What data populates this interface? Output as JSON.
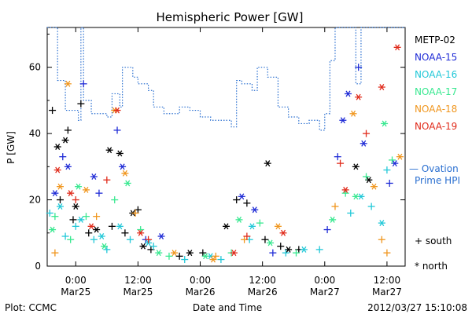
{
  "chart_data": {
    "type": "scatter",
    "title": "Hemispheric Power [GW]",
    "xlabel": "Date and Time",
    "ylabel": "P [GW]",
    "xlim": [
      "2012-03-24 18:30",
      "2012-03-27 15:30"
    ],
    "ylim": [
      0,
      72
    ],
    "grid": false,
    "x_ticks": [
      {
        "time": "2012-03-25 00:00",
        "label1": "0:00",
        "label2": "Mar25"
      },
      {
        "time": "2012-03-25 12:00",
        "label1": "12:00",
        "label2": "Mar25"
      },
      {
        "time": "2012-03-26 00:00",
        "label1": "0:00",
        "label2": "Mar26"
      },
      {
        "time": "2012-03-26 12:00",
        "label1": "12:00",
        "label2": "Mar26"
      },
      {
        "time": "2012-03-27 00:00",
        "label1": "0:00",
        "label2": "Mar27"
      },
      {
        "time": "2012-03-27 12:00",
        "label1": "12:00",
        "label2": "Mar27"
      }
    ],
    "y_ticks": [
      0,
      20,
      40,
      60
    ],
    "legend": {
      "placement": "right",
      "satellites": [
        {
          "name": "METP-02",
          "color": "#000000"
        },
        {
          "name": "NOAA-15",
          "color": "#1f2bd6"
        },
        {
          "name": "NOAA-16",
          "color": "#22c8d8"
        },
        {
          "name": "NOAA-17",
          "color": "#38e890"
        },
        {
          "name": "NOAA-18",
          "color": "#f0961e"
        },
        {
          "name": "NOAA-19",
          "color": "#e02a1a"
        }
      ],
      "model_label_1": "— Ovation",
      "model_label_2": "Prime HPI",
      "model_color": "#2a6fd0",
      "south_label": "+ south",
      "north_label": "* north"
    },
    "ovation_hpi": [
      {
        "x": "2012-03-24 18:30",
        "y": 72
      },
      {
        "x": "2012-03-24 20:00",
        "y": 72
      },
      {
        "x": "2012-03-24 20:30",
        "y": 56
      },
      {
        "x": "2012-03-24 21:30",
        "y": 56
      },
      {
        "x": "2012-03-24 22:00",
        "y": 47
      },
      {
        "x": "2012-03-24 23:00",
        "y": 47
      },
      {
        "x": "2012-03-25 00:30",
        "y": 44
      },
      {
        "x": "2012-03-25 01:00",
        "y": 72
      },
      {
        "x": "2012-03-25 01:30",
        "y": 50
      },
      {
        "x": "2012-03-25 03:00",
        "y": 46
      },
      {
        "x": "2012-03-25 05:00",
        "y": 46
      },
      {
        "x": "2012-03-25 06:00",
        "y": 45
      },
      {
        "x": "2012-03-25 07:00",
        "y": 52
      },
      {
        "x": "2012-03-25 08:30",
        "y": 48
      },
      {
        "x": "2012-03-25 09:00",
        "y": 60
      },
      {
        "x": "2012-03-25 10:00",
        "y": 60
      },
      {
        "x": "2012-03-25 11:00",
        "y": 57
      },
      {
        "x": "2012-03-25 12:00",
        "y": 55
      },
      {
        "x": "2012-03-25 14:00",
        "y": 53
      },
      {
        "x": "2012-03-25 15:00",
        "y": 48
      },
      {
        "x": "2012-03-25 17:00",
        "y": 46
      },
      {
        "x": "2012-03-25 20:00",
        "y": 48
      },
      {
        "x": "2012-03-25 22:00",
        "y": 47
      },
      {
        "x": "2012-03-26 00:00",
        "y": 45
      },
      {
        "x": "2012-03-26 02:00",
        "y": 44
      },
      {
        "x": "2012-03-26 04:00",
        "y": 44
      },
      {
        "x": "2012-03-26 06:00",
        "y": 42
      },
      {
        "x": "2012-03-26 07:00",
        "y": 56
      },
      {
        "x": "2012-03-26 08:00",
        "y": 55
      },
      {
        "x": "2012-03-26 10:00",
        "y": 53
      },
      {
        "x": "2012-03-26 11:00",
        "y": 60
      },
      {
        "x": "2012-03-26 13:00",
        "y": 57
      },
      {
        "x": "2012-03-26 15:00",
        "y": 48
      },
      {
        "x": "2012-03-26 17:00",
        "y": 45
      },
      {
        "x": "2012-03-26 19:00",
        "y": 43
      },
      {
        "x": "2012-03-26 21:00",
        "y": 44
      },
      {
        "x": "2012-03-26 23:00",
        "y": 41
      },
      {
        "x": "2012-03-27 00:00",
        "y": 46
      },
      {
        "x": "2012-03-27 01:00",
        "y": 62
      },
      {
        "x": "2012-03-27 02:00",
        "y": 72
      },
      {
        "x": "2012-03-27 05:00",
        "y": 72
      },
      {
        "x": "2012-03-27 06:00",
        "y": 55
      },
      {
        "x": "2012-03-27 07:00",
        "y": 72
      },
      {
        "x": "2012-03-27 15:30",
        "y": 72
      }
    ],
    "series": [
      {
        "color": "#000000",
        "hemisphere": "south",
        "points": [
          {
            "x": "2012-03-24 19:30",
            "y": 47
          },
          {
            "x": "2012-03-24 21:00",
            "y": 20
          },
          {
            "x": "2012-03-24 22:30",
            "y": 41
          },
          {
            "x": "2012-03-24 23:30",
            "y": 14
          },
          {
            "x": "2012-03-25 01:00",
            "y": 49
          },
          {
            "x": "2012-03-25 02:30",
            "y": 10
          },
          {
            "x": "2012-03-25 07:00",
            "y": 12
          },
          {
            "x": "2012-03-25 09:30",
            "y": 10
          },
          {
            "x": "2012-03-25 12:00",
            "y": 17
          },
          {
            "x": "2012-03-25 14:30",
            "y": 5
          },
          {
            "x": "2012-03-25 20:00",
            "y": 3
          },
          {
            "x": "2012-03-26 00:30",
            "y": 4
          },
          {
            "x": "2012-03-26 07:00",
            "y": 20
          },
          {
            "x": "2012-03-26 09:00",
            "y": 19
          },
          {
            "x": "2012-03-26 12:30",
            "y": 8
          },
          {
            "x": "2012-03-26 15:30",
            "y": 6
          },
          {
            "x": "2012-03-26 19:00",
            "y": 5
          }
        ]
      },
      {
        "color": "#000000",
        "hemisphere": "north",
        "points": [
          {
            "x": "2012-03-24 20:30",
            "y": 36
          },
          {
            "x": "2012-03-24 22:00",
            "y": 38
          },
          {
            "x": "2012-03-25 00:00",
            "y": 18
          },
          {
            "x": "2012-03-25 04:00",
            "y": 11
          },
          {
            "x": "2012-03-25 06:30",
            "y": 35
          },
          {
            "x": "2012-03-25 08:30",
            "y": 34
          },
          {
            "x": "2012-03-25 11:00",
            "y": 16
          },
          {
            "x": "2012-03-25 13:00",
            "y": 6
          },
          {
            "x": "2012-03-25 22:00",
            "y": 4
          },
          {
            "x": "2012-03-26 05:00",
            "y": 12
          },
          {
            "x": "2012-03-26 13:00",
            "y": 31
          },
          {
            "x": "2012-03-26 17:00",
            "y": 5
          },
          {
            "x": "2012-03-27 06:00",
            "y": 30
          },
          {
            "x": "2012-03-27 08:30",
            "y": 26
          }
        ]
      },
      {
        "color": "#1f2bd6",
        "hemisphere": "south",
        "points": [
          {
            "x": "2012-03-24 21:30",
            "y": 33
          },
          {
            "x": "2012-03-25 01:30",
            "y": 55
          },
          {
            "x": "2012-03-25 04:30",
            "y": 22
          },
          {
            "x": "2012-03-25 08:00",
            "y": 41
          },
          {
            "x": "2012-03-25 13:30",
            "y": 8
          },
          {
            "x": "2012-03-26 14:00",
            "y": 4
          },
          {
            "x": "2012-03-27 00:30",
            "y": 11
          },
          {
            "x": "2012-03-27 02:30",
            "y": 33
          },
          {
            "x": "2012-03-27 06:30",
            "y": 60
          },
          {
            "x": "2012-03-27 12:30",
            "y": 25
          }
        ]
      },
      {
        "color": "#1f2bd6",
        "hemisphere": "north",
        "points": [
          {
            "x": "2012-03-24 20:00",
            "y": 22
          },
          {
            "x": "2012-03-24 22:30",
            "y": 30
          },
          {
            "x": "2012-03-25 03:30",
            "y": 27
          },
          {
            "x": "2012-03-25 09:00",
            "y": 30
          },
          {
            "x": "2012-03-25 16:30",
            "y": 9
          },
          {
            "x": "2012-03-26 08:00",
            "y": 21
          },
          {
            "x": "2012-03-26 10:30",
            "y": 17
          },
          {
            "x": "2012-03-27 03:30",
            "y": 44
          },
          {
            "x": "2012-03-27 04:30",
            "y": 52
          },
          {
            "x": "2012-03-27 07:30",
            "y": 37
          },
          {
            "x": "2012-03-27 13:30",
            "y": 31
          }
        ]
      },
      {
        "color": "#22c8d8",
        "hemisphere": "south",
        "points": [
          {
            "x": "2012-03-24 19:00",
            "y": 16
          },
          {
            "x": "2012-03-24 22:00",
            "y": 9
          },
          {
            "x": "2012-03-25 00:00",
            "y": 12
          },
          {
            "x": "2012-03-25 03:30",
            "y": 8
          },
          {
            "x": "2012-03-25 06:00",
            "y": 5
          },
          {
            "x": "2012-03-25 10:30",
            "y": 8
          },
          {
            "x": "2012-03-25 15:00",
            "y": 6
          },
          {
            "x": "2012-03-25 21:00",
            "y": 2
          },
          {
            "x": "2012-03-26 04:00",
            "y": 2
          },
          {
            "x": "2012-03-26 09:30",
            "y": 8
          },
          {
            "x": "2012-03-26 16:30",
            "y": 4
          },
          {
            "x": "2012-03-26 23:00",
            "y": 5
          },
          {
            "x": "2012-03-27 05:00",
            "y": 16
          },
          {
            "x": "2012-03-27 09:00",
            "y": 18
          },
          {
            "x": "2012-03-27 12:00",
            "y": 29
          }
        ]
      },
      {
        "color": "#22c8d8",
        "hemisphere": "north",
        "points": [
          {
            "x": "2012-03-24 21:00",
            "y": 18
          },
          {
            "x": "2012-03-25 01:00",
            "y": 14
          },
          {
            "x": "2012-03-25 05:00",
            "y": 9
          },
          {
            "x": "2012-03-25 08:30",
            "y": 12
          },
          {
            "x": "2012-03-25 14:00",
            "y": 7
          },
          {
            "x": "2012-03-26 02:00",
            "y": 3
          },
          {
            "x": "2012-03-26 10:00",
            "y": 12
          },
          {
            "x": "2012-03-26 20:00",
            "y": 5
          },
          {
            "x": "2012-03-27 07:00",
            "y": 21
          },
          {
            "x": "2012-03-27 11:00",
            "y": 13
          }
        ]
      },
      {
        "color": "#38e890",
        "hemisphere": "south",
        "points": [
          {
            "x": "2012-03-24 20:00",
            "y": 15
          },
          {
            "x": "2012-03-24 23:00",
            "y": 8
          },
          {
            "x": "2012-03-25 02:00",
            "y": 15
          },
          {
            "x": "2012-03-25 07:30",
            "y": 20
          },
          {
            "x": "2012-03-25 12:30",
            "y": 11
          },
          {
            "x": "2012-03-25 18:00",
            "y": 3
          },
          {
            "x": "2012-03-26 06:00",
            "y": 4
          },
          {
            "x": "2012-03-26 11:30",
            "y": 13
          },
          {
            "x": "2012-03-26 18:30",
            "y": 4
          },
          {
            "x": "2012-03-27 04:00",
            "y": 22
          },
          {
            "x": "2012-03-27 08:00",
            "y": 27
          },
          {
            "x": "2012-03-27 13:00",
            "y": 32
          }
        ]
      },
      {
        "color": "#38e890",
        "hemisphere": "north",
        "points": [
          {
            "x": "2012-03-24 19:30",
            "y": 11
          },
          {
            "x": "2012-03-25 00:30",
            "y": 24
          },
          {
            "x": "2012-03-25 05:30",
            "y": 6
          },
          {
            "x": "2012-03-25 10:00",
            "y": 25
          },
          {
            "x": "2012-03-25 16:00",
            "y": 4
          },
          {
            "x": "2012-03-26 01:00",
            "y": 3
          },
          {
            "x": "2012-03-26 07:30",
            "y": 14
          },
          {
            "x": "2012-03-26 13:30",
            "y": 7
          },
          {
            "x": "2012-03-27 01:30",
            "y": 14
          },
          {
            "x": "2012-03-27 06:00",
            "y": 21
          },
          {
            "x": "2012-03-27 11:30",
            "y": 43
          }
        ]
      },
      {
        "color": "#f0961e",
        "hemisphere": "south",
        "points": [
          {
            "x": "2012-03-24 20:00",
            "y": 4
          },
          {
            "x": "2012-03-25 04:00",
            "y": 15
          },
          {
            "x": "2012-03-25 11:30",
            "y": 16
          },
          {
            "x": "2012-03-26 03:00",
            "y": 3
          },
          {
            "x": "2012-03-26 08:30",
            "y": 8
          },
          {
            "x": "2012-03-27 02:00",
            "y": 18
          },
          {
            "x": "2012-03-27 11:00",
            "y": 8
          },
          {
            "x": "2012-03-27 12:00",
            "y": 4
          }
        ]
      },
      {
        "color": "#f0961e",
        "hemisphere": "north",
        "points": [
          {
            "x": "2012-03-24 21:00",
            "y": 24
          },
          {
            "x": "2012-03-24 22:30",
            "y": 55
          },
          {
            "x": "2012-03-25 02:00",
            "y": 23
          },
          {
            "x": "2012-03-25 07:30",
            "y": 47
          },
          {
            "x": "2012-03-25 09:30",
            "y": 28
          },
          {
            "x": "2012-03-25 19:00",
            "y": 4
          },
          {
            "x": "2012-03-26 02:30",
            "y": 2
          },
          {
            "x": "2012-03-26 15:00",
            "y": 12
          },
          {
            "x": "2012-03-27 05:30",
            "y": 46
          },
          {
            "x": "2012-03-27 09:30",
            "y": 24
          },
          {
            "x": "2012-03-27 14:30",
            "y": 33
          }
        ]
      },
      {
        "color": "#e02a1a",
        "hemisphere": "south",
        "points": [
          {
            "x": "2012-03-25 00:00",
            "y": 20
          },
          {
            "x": "2012-03-25 06:00",
            "y": 26
          },
          {
            "x": "2012-03-25 14:00",
            "y": 8
          },
          {
            "x": "2012-03-26 09:00",
            "y": 9
          },
          {
            "x": "2012-03-27 03:00",
            "y": 31
          },
          {
            "x": "2012-03-27 08:00",
            "y": 40
          }
        ]
      },
      {
        "color": "#e02a1a",
        "hemisphere": "north",
        "points": [
          {
            "x": "2012-03-24 20:30",
            "y": 29
          },
          {
            "x": "2012-03-24 23:00",
            "y": 22
          },
          {
            "x": "2012-03-25 03:00",
            "y": 12
          },
          {
            "x": "2012-03-25 08:00",
            "y": 47
          },
          {
            "x": "2012-03-25 12:30",
            "y": 10
          },
          {
            "x": "2012-03-26 06:30",
            "y": 4
          },
          {
            "x": "2012-03-26 16:00",
            "y": 10
          },
          {
            "x": "2012-03-27 04:00",
            "y": 23
          },
          {
            "x": "2012-03-27 06:30",
            "y": 51
          },
          {
            "x": "2012-03-27 11:00",
            "y": 54
          },
          {
            "x": "2012-03-27 14:00",
            "y": 66
          }
        ]
      }
    ]
  },
  "footer": {
    "plot_source": "Plot: CCMC",
    "timestamp": "2012/03/27 15:10:08"
  }
}
